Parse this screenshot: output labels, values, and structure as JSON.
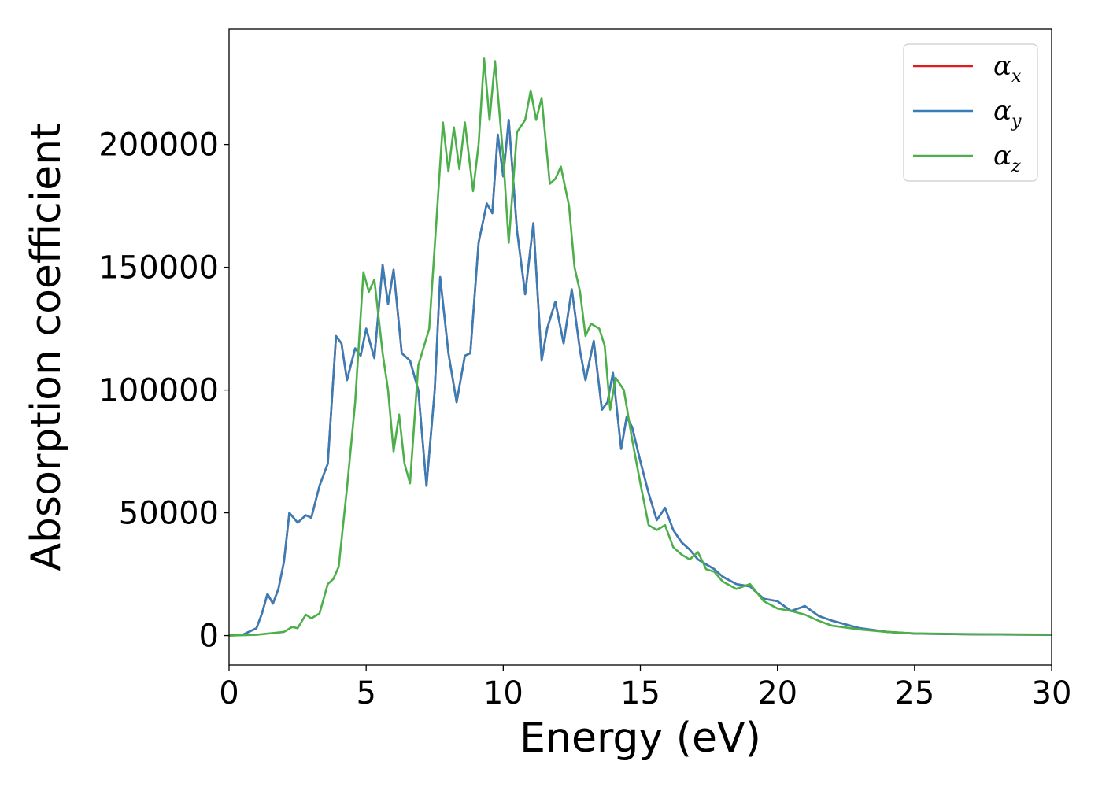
{
  "chart_data": {
    "type": "line",
    "title": "",
    "xlabel": "Energy (eV)",
    "ylabel": "Absorption coefficient",
    "xlim": [
      0,
      30
    ],
    "ylim": [
      -12000,
      247000
    ],
    "x_ticks": [
      "0",
      "5",
      "10",
      "15",
      "20",
      "25",
      "30"
    ],
    "y_ticks": [
      "0",
      "50000",
      "100000",
      "150000",
      "200000"
    ],
    "grid": false,
    "legend": {
      "position": "top-right",
      "entries": [
        {
          "symbol": "α",
          "subscript": "x"
        },
        {
          "symbol": "α",
          "subscript": "y"
        },
        {
          "symbol": "α",
          "subscript": "z"
        }
      ]
    },
    "series": [
      {
        "name": "α_x",
        "color": "#e41a1c",
        "points": [
          [
            0,
            0
          ],
          [
            0.5,
            300
          ],
          [
            1.0,
            3000
          ],
          [
            1.2,
            9000
          ],
          [
            1.4,
            17000
          ],
          [
            1.6,
            13000
          ],
          [
            1.8,
            19000
          ],
          [
            2.0,
            30000
          ],
          [
            2.2,
            50000
          ],
          [
            2.5,
            46000
          ],
          [
            2.8,
            49000
          ],
          [
            3.0,
            48000
          ],
          [
            3.3,
            61000
          ],
          [
            3.6,
            70000
          ],
          [
            3.9,
            122000
          ],
          [
            4.1,
            119000
          ],
          [
            4.3,
            104000
          ],
          [
            4.6,
            117000
          ],
          [
            4.8,
            114000
          ],
          [
            5.0,
            125000
          ],
          [
            5.3,
            113000
          ],
          [
            5.6,
            151000
          ],
          [
            5.8,
            135000
          ],
          [
            6.0,
            149000
          ],
          [
            6.3,
            115000
          ],
          [
            6.6,
            112000
          ],
          [
            6.9,
            100000
          ],
          [
            7.2,
            61000
          ],
          [
            7.5,
            100000
          ],
          [
            7.7,
            146000
          ],
          [
            8.0,
            115000
          ],
          [
            8.3,
            95000
          ],
          [
            8.6,
            114000
          ],
          [
            8.8,
            115000
          ],
          [
            9.1,
            160000
          ],
          [
            9.4,
            176000
          ],
          [
            9.6,
            172000
          ],
          [
            9.8,
            204000
          ],
          [
            10.0,
            187000
          ],
          [
            10.2,
            210000
          ],
          [
            10.5,
            165000
          ],
          [
            10.8,
            139000
          ],
          [
            11.1,
            168000
          ],
          [
            11.4,
            112000
          ],
          [
            11.6,
            125000
          ],
          [
            11.9,
            136000
          ],
          [
            12.2,
            119000
          ],
          [
            12.5,
            141000
          ],
          [
            12.8,
            116000
          ],
          [
            13.0,
            104000
          ],
          [
            13.3,
            120000
          ],
          [
            13.6,
            92000
          ],
          [
            13.8,
            95000
          ],
          [
            14.0,
            107000
          ],
          [
            14.3,
            76000
          ],
          [
            14.5,
            89000
          ],
          [
            14.7,
            85000
          ],
          [
            15.0,
            71000
          ],
          [
            15.3,
            58000
          ],
          [
            15.6,
            47000
          ],
          [
            15.9,
            52000
          ],
          [
            16.2,
            43000
          ],
          [
            16.5,
            38000
          ],
          [
            16.8,
            35000
          ],
          [
            17.1,
            31000
          ],
          [
            17.4,
            29000
          ],
          [
            17.7,
            27000
          ],
          [
            18.0,
            24000
          ],
          [
            18.5,
            21000
          ],
          [
            19.0,
            20000
          ],
          [
            19.5,
            15000
          ],
          [
            20.0,
            14000
          ],
          [
            20.5,
            10000
          ],
          [
            21.0,
            12000
          ],
          [
            21.5,
            8000
          ],
          [
            22.0,
            6000
          ],
          [
            23.0,
            3000
          ],
          [
            24.0,
            1500
          ],
          [
            25.0,
            800
          ],
          [
            27.0,
            500
          ],
          [
            30.0,
            300
          ]
        ]
      },
      {
        "name": "α_y",
        "color": "#377eb8",
        "points": [
          [
            0,
            0
          ],
          [
            0.5,
            300
          ],
          [
            1.0,
            3000
          ],
          [
            1.2,
            9000
          ],
          [
            1.4,
            17000
          ],
          [
            1.6,
            13000
          ],
          [
            1.8,
            19000
          ],
          [
            2.0,
            30000
          ],
          [
            2.2,
            50000
          ],
          [
            2.5,
            46000
          ],
          [
            2.8,
            49000
          ],
          [
            3.0,
            48000
          ],
          [
            3.3,
            61000
          ],
          [
            3.6,
            70000
          ],
          [
            3.9,
            122000
          ],
          [
            4.1,
            119000
          ],
          [
            4.3,
            104000
          ],
          [
            4.6,
            117000
          ],
          [
            4.8,
            114000
          ],
          [
            5.0,
            125000
          ],
          [
            5.3,
            113000
          ],
          [
            5.6,
            151000
          ],
          [
            5.8,
            135000
          ],
          [
            6.0,
            149000
          ],
          [
            6.3,
            115000
          ],
          [
            6.6,
            112000
          ],
          [
            6.9,
            100000
          ],
          [
            7.2,
            61000
          ],
          [
            7.5,
            100000
          ],
          [
            7.7,
            146000
          ],
          [
            8.0,
            115000
          ],
          [
            8.3,
            95000
          ],
          [
            8.6,
            114000
          ],
          [
            8.8,
            115000
          ],
          [
            9.1,
            160000
          ],
          [
            9.4,
            176000
          ],
          [
            9.6,
            172000
          ],
          [
            9.8,
            204000
          ],
          [
            10.0,
            187000
          ],
          [
            10.2,
            210000
          ],
          [
            10.5,
            165000
          ],
          [
            10.8,
            139000
          ],
          [
            11.1,
            168000
          ],
          [
            11.4,
            112000
          ],
          [
            11.6,
            125000
          ],
          [
            11.9,
            136000
          ],
          [
            12.2,
            119000
          ],
          [
            12.5,
            141000
          ],
          [
            12.8,
            116000
          ],
          [
            13.0,
            104000
          ],
          [
            13.3,
            120000
          ],
          [
            13.6,
            92000
          ],
          [
            13.8,
            95000
          ],
          [
            14.0,
            107000
          ],
          [
            14.3,
            76000
          ],
          [
            14.5,
            89000
          ],
          [
            14.7,
            85000
          ],
          [
            15.0,
            71000
          ],
          [
            15.3,
            58000
          ],
          [
            15.6,
            47000
          ],
          [
            15.9,
            52000
          ],
          [
            16.2,
            43000
          ],
          [
            16.5,
            38000
          ],
          [
            16.8,
            35000
          ],
          [
            17.1,
            31000
          ],
          [
            17.4,
            29000
          ],
          [
            17.7,
            27000
          ],
          [
            18.0,
            24000
          ],
          [
            18.5,
            21000
          ],
          [
            19.0,
            20000
          ],
          [
            19.5,
            15000
          ],
          [
            20.0,
            14000
          ],
          [
            20.5,
            10000
          ],
          [
            21.0,
            12000
          ],
          [
            21.5,
            8000
          ],
          [
            22.0,
            6000
          ],
          [
            23.0,
            3000
          ],
          [
            24.0,
            1500
          ],
          [
            25.0,
            800
          ],
          [
            27.0,
            500
          ],
          [
            30.0,
            300
          ]
        ]
      },
      {
        "name": "α_z",
        "color": "#4daf4a",
        "points": [
          [
            0,
            0
          ],
          [
            1.0,
            300
          ],
          [
            2.0,
            1500
          ],
          [
            2.3,
            3500
          ],
          [
            2.5,
            3000
          ],
          [
            2.8,
            8500
          ],
          [
            3.0,
            7000
          ],
          [
            3.3,
            9000
          ],
          [
            3.6,
            21000
          ],
          [
            3.8,
            23000
          ],
          [
            4.0,
            28000
          ],
          [
            4.3,
            60000
          ],
          [
            4.6,
            95000
          ],
          [
            4.9,
            148000
          ],
          [
            5.1,
            140000
          ],
          [
            5.3,
            145000
          ],
          [
            5.6,
            115000
          ],
          [
            5.8,
            100000
          ],
          [
            6.0,
            75000
          ],
          [
            6.2,
            90000
          ],
          [
            6.4,
            70000
          ],
          [
            6.6,
            62000
          ],
          [
            6.9,
            110000
          ],
          [
            7.3,
            125000
          ],
          [
            7.6,
            175000
          ],
          [
            7.8,
            209000
          ],
          [
            8.0,
            189000
          ],
          [
            8.2,
            207000
          ],
          [
            8.4,
            190000
          ],
          [
            8.6,
            209000
          ],
          [
            8.9,
            181000
          ],
          [
            9.1,
            200000
          ],
          [
            9.3,
            235000
          ],
          [
            9.5,
            210000
          ],
          [
            9.7,
            234000
          ],
          [
            10.0,
            195000
          ],
          [
            10.2,
            160000
          ],
          [
            10.5,
            205000
          ],
          [
            10.8,
            210000
          ],
          [
            11.0,
            222000
          ],
          [
            11.2,
            210000
          ],
          [
            11.4,
            219000
          ],
          [
            11.7,
            184000
          ],
          [
            11.9,
            186000
          ],
          [
            12.1,
            191000
          ],
          [
            12.4,
            175000
          ],
          [
            12.6,
            150000
          ],
          [
            12.8,
            140000
          ],
          [
            13.0,
            122000
          ],
          [
            13.2,
            127000
          ],
          [
            13.5,
            125000
          ],
          [
            13.7,
            118000
          ],
          [
            13.9,
            92000
          ],
          [
            14.1,
            105000
          ],
          [
            14.4,
            100000
          ],
          [
            14.7,
            80000
          ],
          [
            15.0,
            62000
          ],
          [
            15.3,
            45000
          ],
          [
            15.6,
            43000
          ],
          [
            15.9,
            45000
          ],
          [
            16.2,
            36000
          ],
          [
            16.5,
            33000
          ],
          [
            16.8,
            31000
          ],
          [
            17.1,
            34000
          ],
          [
            17.4,
            27000
          ],
          [
            17.7,
            26000
          ],
          [
            18.0,
            22000
          ],
          [
            18.5,
            19000
          ],
          [
            19.0,
            21000
          ],
          [
            19.5,
            14000
          ],
          [
            20.0,
            11000
          ],
          [
            20.5,
            10000
          ],
          [
            21.0,
            8500
          ],
          [
            21.5,
            6000
          ],
          [
            22.0,
            4000
          ],
          [
            23.0,
            2500
          ],
          [
            24.0,
            1500
          ],
          [
            25.0,
            900
          ],
          [
            27.0,
            600
          ],
          [
            30.0,
            400
          ]
        ]
      }
    ]
  }
}
